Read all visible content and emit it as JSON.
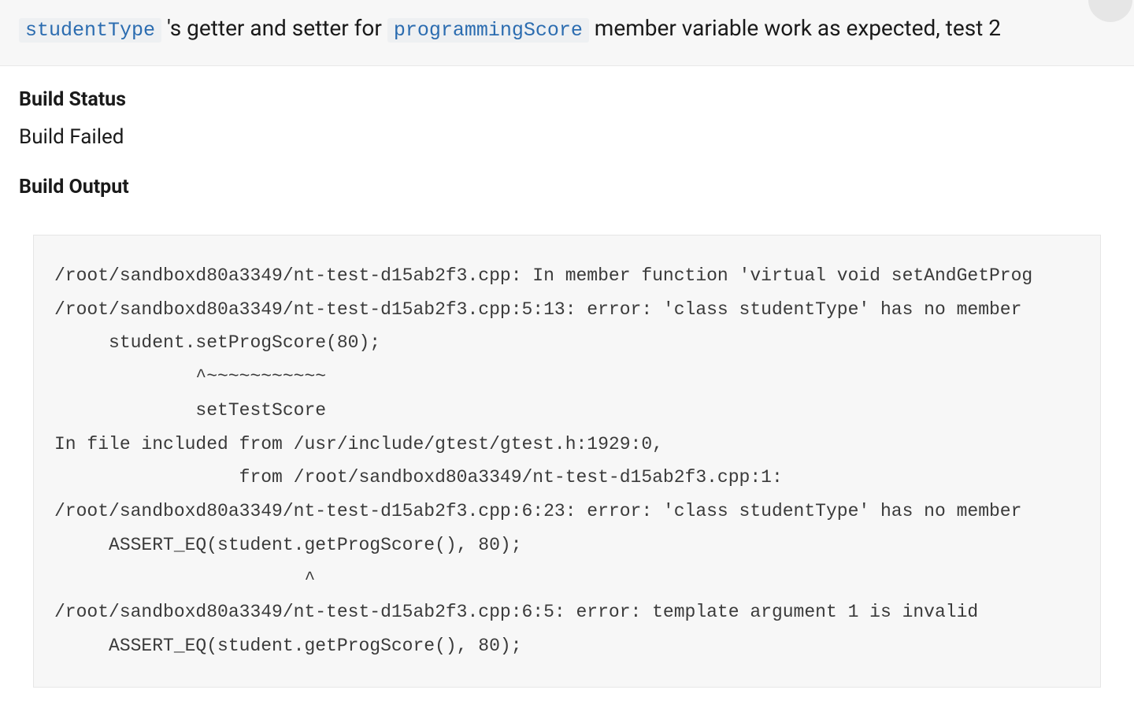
{
  "header": {
    "text_pre": " 's getter and setter for ",
    "code1": "studentType",
    "code2": "programmingScore",
    "text_post": " member variable work as expected, test 2"
  },
  "sections": {
    "build_status_label": "Build Status",
    "build_status_value": "Build Failed",
    "build_output_label": "Build Output"
  },
  "build_output_lines": [
    "/root/sandboxd80a3349/nt-test-d15ab2f3.cpp: In member function 'virtual void setAndGetProg",
    "/root/sandboxd80a3349/nt-test-d15ab2f3.cpp:5:13: error: 'class studentType' has no member ",
    "     student.setProgScore(80);",
    "             ^~~~~~~~~~~~",
    "             setTestScore",
    "In file included from /usr/include/gtest/gtest.h:1929:0,",
    "                 from /root/sandboxd80a3349/nt-test-d15ab2f3.cpp:1:",
    "/root/sandboxd80a3349/nt-test-d15ab2f3.cpp:6:23: error: 'class studentType' has no member ",
    "     ASSERT_EQ(student.getProgScore(), 80);",
    "                       ^",
    "/root/sandboxd80a3349/nt-test-d15ab2f3.cpp:6:5: error: template argument 1 is invalid",
    "     ASSERT_EQ(student.getProgScore(), 80);"
  ],
  "style": {
    "header_bg": "#f7f7f7",
    "body_bg": "#ffffff",
    "code_bg": "#f7f7f7",
    "code_border": "#e6e6e6",
    "inline_code_bg": "#eef0f2",
    "inline_code_color": "#2b6cb0",
    "text_color": "#1a1a1a",
    "code_text_color": "#3a3a3a",
    "avatar_bg": "#e6e6e6",
    "font_size_header": 28,
    "font_size_section_title": 25,
    "font_size_status": 26,
    "font_size_code": 23,
    "code_line_height": 1.86
  }
}
